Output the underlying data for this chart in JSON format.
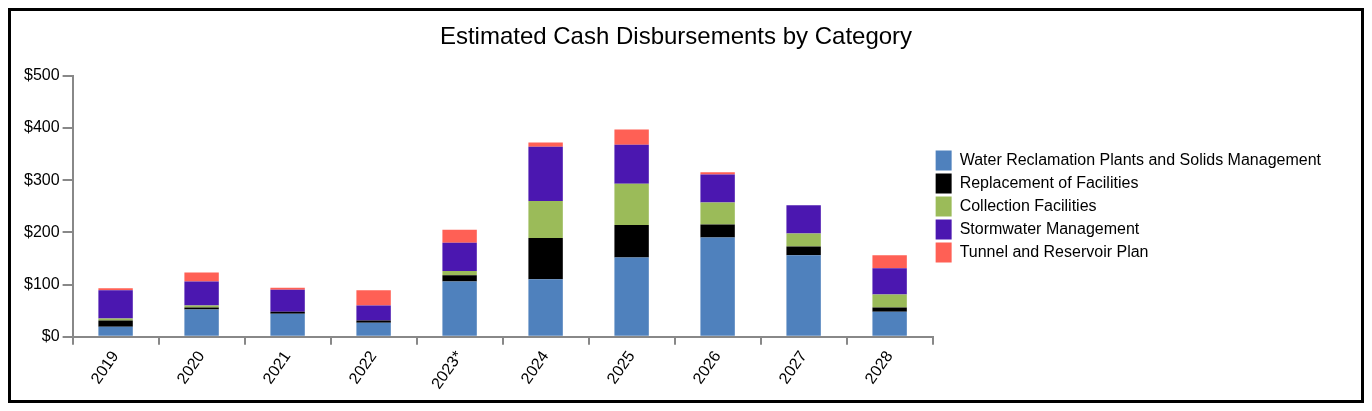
{
  "chart_data": {
    "type": "bar",
    "title": "Estimated Cash Disbursements by Category",
    "stacked": true,
    "grid": false,
    "legend": "right",
    "categories": [
      "2019",
      "2020",
      "2021",
      "2022",
      "2023*",
      "2024",
      "2025",
      "2026",
      "2027",
      "2028"
    ],
    "ylim": [
      0,
      500
    ],
    "yticks": [
      {
        "value": 0,
        "label": "$0"
      },
      {
        "value": 100,
        "label": "$100"
      },
      {
        "value": 200,
        "label": "$200"
      },
      {
        "value": 300,
        "label": "$300"
      },
      {
        "value": 400,
        "label": "$400"
      },
      {
        "value": 500,
        "label": "$500"
      }
    ],
    "series": [
      {
        "name": "Water Reclamation Plants and Solids Management",
        "color": "#4f81bd",
        "values": [
          19,
          52,
          44,
          27,
          106,
          110,
          152,
          190,
          156,
          48
        ]
      },
      {
        "name": "Replacement of Facilities",
        "color": "#000000",
        "values": [
          12,
          4,
          4,
          4,
          12,
          79,
          62,
          25,
          17,
          8
        ]
      },
      {
        "name": "Collection Facilities",
        "color": "#9bbb59",
        "values": [
          4,
          4,
          0,
          0,
          8,
          71,
          79,
          42,
          25,
          25
        ]
      },
      {
        "name": "Stormwater Management",
        "color": "#4b17b0",
        "values": [
          54,
          46,
          42,
          29,
          54,
          104,
          75,
          54,
          54,
          50
        ]
      },
      {
        "name": "Tunnel and Reservoir Plan",
        "color": "#ff6055",
        "values": [
          4,
          17,
          4,
          29,
          25,
          8,
          29,
          4,
          0,
          25
        ]
      }
    ]
  }
}
